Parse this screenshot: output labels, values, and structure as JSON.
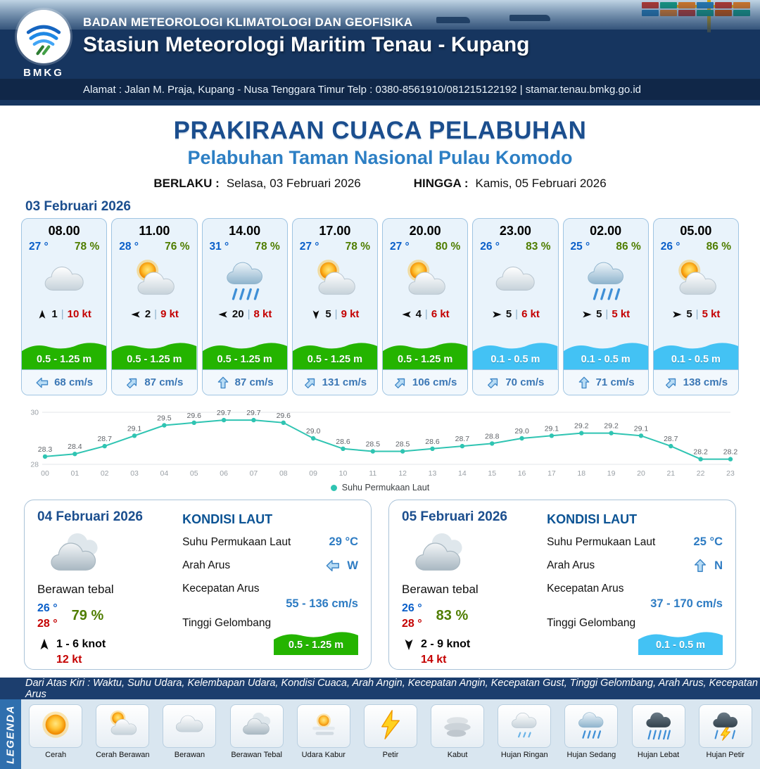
{
  "header": {
    "logo_text": "BMKG",
    "org": "BADAN METEOROLOGI KLIMATOLOGI DAN GEOFISIKA",
    "station": "Stasiun Meteorologi Maritim Tenau - Kupang",
    "address": "Alamat : Jalan M. Praja, Kupang - Nusa Tenggara Timur Telp : 0380-8561910/081215122192  | stamar.tenau.bmkg.go.id"
  },
  "title": {
    "main": "PRAKIRAAN CUACA PELABUHAN",
    "subtitle": "Pelabuhan Taman Nasional Pulau Komodo",
    "valid_from_label": "BERLAKU :",
    "valid_from": "Selasa, 03 Februari 2026",
    "valid_to_label": "HINGGA :",
    "valid_to": "Kamis, 05 Februari 2026"
  },
  "day1": {
    "date": "03 Februari 2026",
    "separator": "|",
    "cards": [
      {
        "time": "08.00",
        "temp": "27 °",
        "humidity": "78 %",
        "icon": "berawan",
        "wind_dir_deg": 0,
        "wind_speed": "1",
        "gust": "10 kt",
        "wave": "0.5 - 1.25 m",
        "wave_color": "green",
        "current_dir_deg": 270,
        "current": "68 cm/s"
      },
      {
        "time": "11.00",
        "temp": "28 °",
        "humidity": "76 %",
        "icon": "cerah-berawan",
        "wind_dir_deg": 270,
        "wind_speed": "2",
        "gust": "9 kt",
        "wave": "0.5 - 1.25 m",
        "wave_color": "green",
        "current_dir_deg": 45,
        "current": "87 cm/s"
      },
      {
        "time": "14.00",
        "temp": "31 °",
        "humidity": "78 %",
        "icon": "hujan-sedang",
        "wind_dir_deg": 270,
        "wind_speed": "20",
        "gust": "8 kt",
        "wave": "0.5 - 1.25 m",
        "wave_color": "green",
        "current_dir_deg": 0,
        "current": "87 cm/s"
      },
      {
        "time": "17.00",
        "temp": "27 °",
        "humidity": "78 %",
        "icon": "cerah-berawan",
        "wind_dir_deg": 180,
        "wind_speed": "5",
        "gust": "9 kt",
        "wave": "0.5 - 1.25 m",
        "wave_color": "green",
        "current_dir_deg": 45,
        "current": "131 cm/s"
      },
      {
        "time": "20.00",
        "temp": "27 °",
        "humidity": "80 %",
        "icon": "cerah-berawan",
        "wind_dir_deg": 270,
        "wind_speed": "4",
        "gust": "6 kt",
        "wave": "0.5 - 1.25 m",
        "wave_color": "green",
        "current_dir_deg": 45,
        "current": "106 cm/s"
      },
      {
        "time": "23.00",
        "temp": "26 °",
        "humidity": "83 %",
        "icon": "berawan",
        "wind_dir_deg": 90,
        "wind_speed": "5",
        "gust": "6 kt",
        "wave": "0.1 - 0.5 m",
        "wave_color": "blue",
        "current_dir_deg": 45,
        "current": "70 cm/s"
      },
      {
        "time": "02.00",
        "temp": "25 °",
        "humidity": "86 %",
        "icon": "hujan-sedang",
        "wind_dir_deg": 90,
        "wind_speed": "5",
        "gust": "5 kt",
        "wave": "0.1 - 0.5 m",
        "wave_color": "blue",
        "current_dir_deg": 0,
        "current": "71 cm/s"
      },
      {
        "time": "05.00",
        "temp": "26 °",
        "humidity": "86 %",
        "icon": "cerah-berawan",
        "wind_dir_deg": 90,
        "wind_speed": "5",
        "gust": "5 kt",
        "wave": "0.1 - 0.5 m",
        "wave_color": "blue",
        "current_dir_deg": 45,
        "current": "138 cm/s"
      }
    ]
  },
  "chart_data": {
    "type": "line",
    "x": [
      "00",
      "01",
      "02",
      "03",
      "04",
      "05",
      "06",
      "07",
      "08",
      "09",
      "10",
      "11",
      "12",
      "13",
      "14",
      "15",
      "16",
      "17",
      "18",
      "19",
      "20",
      "21",
      "22",
      "23"
    ],
    "series": [
      {
        "name": "Suhu Permukaan Laut",
        "values": [
          28.3,
          28.4,
          28.7,
          29.1,
          29.5,
          29.6,
          29.7,
          29.7,
          29.6,
          29.0,
          28.6,
          28.5,
          28.5,
          28.6,
          28.7,
          28.8,
          29.0,
          29.1,
          29.2,
          29.2,
          29.1,
          28.7,
          28.2,
          28.2
        ],
        "color": "#2fc4b2"
      }
    ],
    "ylim": [
      28,
      30
    ],
    "yticks": [
      28,
      30
    ],
    "legend_position": "bottom",
    "grid": true,
    "title": "",
    "xlabel": "",
    "ylabel": ""
  },
  "day_cards": [
    {
      "date": "04 Februari 2026",
      "icon": "berawan-tebal",
      "condition": "Berawan tebal",
      "temp_min": "26 °",
      "temp_max": "28 °",
      "humidity": "79 %",
      "wind_dir_deg": 0,
      "wind_range": "1 - 6 knot",
      "gust": "12 kt",
      "sea_title": "KONDISI LAUT",
      "sst_label": "Suhu Permukaan Laut",
      "sst": "29 °C",
      "current_dir_label": "Arah Arus",
      "current_dir_deg": 270,
      "current_dir_text": "W",
      "current_speed_label": "Kecepatan Arus",
      "current_speed": "55 - 136 cm/s",
      "wave_label": "Tinggi Gelombang",
      "wave": "0.5 - 1.25 m",
      "wave_color": "green"
    },
    {
      "date": "05 Februari 2026",
      "icon": "berawan-tebal",
      "condition": "Berawan tebal",
      "temp_min": "26 °",
      "temp_max": "28 °",
      "humidity": "83 %",
      "wind_dir_deg": 180,
      "wind_range": "2 - 9 knot",
      "gust": "14 kt",
      "sea_title": "KONDISI LAUT",
      "sst_label": "Suhu Permukaan Laut",
      "sst": "25 °C",
      "current_dir_label": "Arah Arus",
      "current_dir_deg": 0,
      "current_dir_text": "N",
      "current_speed_label": "Kecepatan Arus",
      "current_speed": "37 - 170 cm/s",
      "wave_label": "Tinggi Gelombang",
      "wave": "0.1 - 0.5 m",
      "wave_color": "blue"
    }
  ],
  "legend": {
    "note": "Dari Atas Kiri : Waktu, Suhu Udara, Kelembapan Udara, Kondisi Cuaca, Arah Angin, Kecepatan Angin, Kecepatan Gust, Tinggi Gelombang, Arah Arus, Kecepatan Arus",
    "title": "LEGENDA",
    "items": [
      {
        "label": "Cerah",
        "icon": "cerah"
      },
      {
        "label": "Cerah Berawan",
        "icon": "cerah-berawan"
      },
      {
        "label": "Berawan",
        "icon": "berawan"
      },
      {
        "label": "Berawan Tebal",
        "icon": "berawan-tebal"
      },
      {
        "label": "Udara Kabur",
        "icon": "udara-kabur"
      },
      {
        "label": "Petir",
        "icon": "petir"
      },
      {
        "label": "Kabut",
        "icon": "kabut"
      },
      {
        "label": "Hujan Ringan",
        "icon": "hujan-ringan"
      },
      {
        "label": "Hujan Sedang",
        "icon": "hujan-sedang"
      },
      {
        "label": "Hujan Lebat",
        "icon": "hujan-lebat"
      },
      {
        "label": "Hujan Petir",
        "icon": "hujan-petir"
      }
    ]
  },
  "colors": {
    "wave_green": "#24b400",
    "wave_blue": "#43c2f4",
    "accent_blue": "#1b4e8e",
    "subtitle_blue": "#2d7fc4",
    "temp_blue": "#0a5fc9",
    "humidity_green": "#4f7d00",
    "gust_red": "#c40000",
    "current_blue": "#3b77b5",
    "chart_teal": "#2fc4b2",
    "header_navy": "#1c3e6e"
  }
}
